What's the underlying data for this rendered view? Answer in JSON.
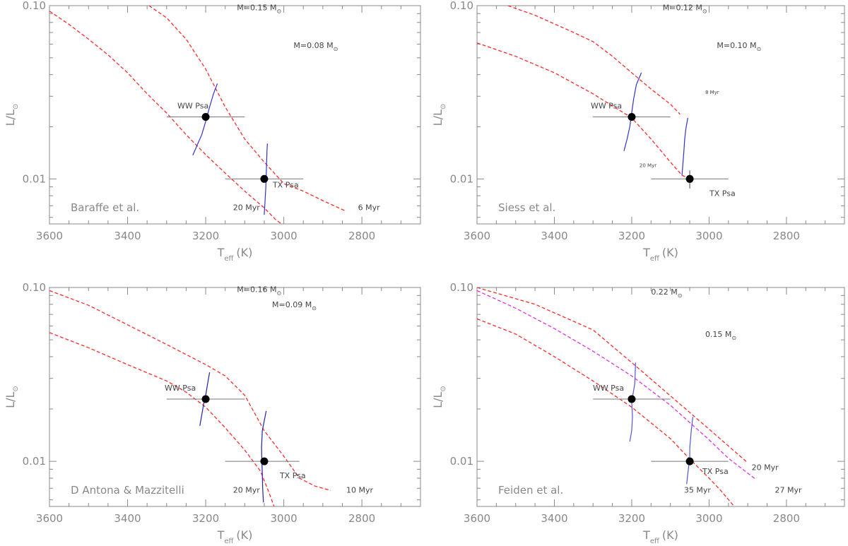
{
  "chart_data": [
    {
      "type": "line",
      "panel": "top-left",
      "model": "Baraffe et al.",
      "xlabel": "T",
      "xlabel_sub": "eff",
      "xlabel_unit": "(K)",
      "ylabel": "L/L",
      "ylabel_sym": "⊙",
      "xlim": [
        3600,
        2650
      ],
      "ylim": [
        0.0055,
        0.1
      ],
      "yscale": "log",
      "xticks": [
        3600,
        3400,
        3200,
        3000,
        2800
      ],
      "xtick_labels": [
        "3600",
        "3400",
        "3200",
        "3000",
        "2800"
      ],
      "yticks": [
        0.01,
        0.1
      ],
      "ytick_labels": [
        "0.01",
        "0.10"
      ],
      "isochrones": [
        {
          "label": "6 Myr",
          "color": "#ff2a2a",
          "dash": true,
          "points": [
            [
              3345,
              0.1
            ],
            [
              3300,
              0.085
            ],
            [
              3250,
              0.064
            ],
            [
              3200,
              0.043
            ],
            [
              3150,
              0.026
            ],
            [
              3100,
              0.017
            ],
            [
              3050,
              0.0125
            ],
            [
              3000,
              0.0094
            ],
            [
              2950,
              0.0085
            ],
            [
              2900,
              0.0075
            ],
            [
              2840,
              0.0065
            ]
          ]
        },
        {
          "label": "20 Myr",
          "color": "#ff2a2a",
          "dash": true,
          "points": [
            [
              3600,
              0.093
            ],
            [
              3550,
              0.078
            ],
            [
              3500,
              0.064
            ],
            [
              3450,
              0.052
            ],
            [
              3400,
              0.041
            ],
            [
              3350,
              0.031
            ],
            [
              3300,
              0.024
            ],
            [
              3250,
              0.018
            ],
            [
              3200,
              0.0138
            ],
            [
              3150,
              0.0108
            ],
            [
              3100,
              0.0085
            ],
            [
              3050,
              0.0068
            ],
            [
              3020,
              0.0058
            ],
            [
              2990,
              0.0052
            ]
          ]
        }
      ],
      "mass_tracks": [
        {
          "color": "#3333cc",
          "points": [
            [
              3233,
              0.0137
            ],
            [
              3220,
              0.016
            ],
            [
              3210,
              0.018
            ],
            [
              3200,
              0.0215
            ],
            [
              3190,
              0.026
            ],
            [
              3180,
              0.031
            ],
            [
              3170,
              0.0355
            ]
          ]
        },
        {
          "color": "#3333cc",
          "points": [
            [
              3050,
              0.0062
            ],
            [
              3048,
              0.0075
            ],
            [
              3046,
              0.009
            ],
            [
              3045,
              0.0105
            ],
            [
              3044,
              0.0125
            ],
            [
              3043,
              0.0145
            ],
            [
              3042,
              0.016
            ]
          ]
        }
      ],
      "stars": [
        {
          "name": "WW Psa",
          "teff": 3200,
          "L": 0.0228,
          "xerr": [
            3300,
            3100
          ],
          "yerr": null,
          "label_dx": -40,
          "label_dy": -12
        },
        {
          "name": "TX Psa",
          "teff": 3050,
          "L": 0.01,
          "xerr": [
            3150,
            2950
          ],
          "yerr": null,
          "label_dx": 12,
          "label_dy": 12
        }
      ],
      "annotations": [
        {
          "text": "M=0.15 M",
          "sym": "⊙",
          "teff": 3120,
          "L": 0.094,
          "class": "ann"
        },
        {
          "text": "M=0.08 M",
          "sym": "⊙",
          "teff": 2975,
          "L": 0.057,
          "class": "ann"
        },
        {
          "text": "20 Myr",
          "teff": 3130,
          "L": 0.0066,
          "class": "ann"
        },
        {
          "text": "6 Myr",
          "teff": 2810,
          "L": 0.0066,
          "class": "ann"
        }
      ]
    },
    {
      "type": "line",
      "panel": "top-right",
      "model": "Siess et al.",
      "xlabel": "T",
      "xlabel_sub": "eff",
      "xlabel_unit": "(K)",
      "ylabel": "L/L",
      "ylabel_sym": "⊙",
      "xlim": [
        3600,
        2650
      ],
      "ylim": [
        0.0055,
        0.1
      ],
      "yscale": "log",
      "xticks": [
        3600,
        3400,
        3200,
        3000,
        2800
      ],
      "xtick_labels": [
        "3600",
        "3400",
        "3200",
        "3000",
        "2800"
      ],
      "yticks": [
        0.01,
        0.1
      ],
      "ytick_labels": [
        "0.01",
        "0.10"
      ],
      "isochrones": [
        {
          "label": "8 Myr",
          "color": "#ff2a2a",
          "dash": true,
          "points": [
            [
              3520,
              0.1
            ],
            [
              3450,
              0.088
            ],
            [
              3350,
              0.07
            ],
            [
              3300,
              0.062
            ],
            [
              3250,
              0.051
            ],
            [
              3200,
              0.041
            ],
            [
              3150,
              0.033
            ],
            [
              3100,
              0.027
            ],
            [
              3075,
              0.0236
            ]
          ]
        },
        {
          "label": "20 Myr",
          "color": "#ff2a2a",
          "dash": true,
          "points": [
            [
              3600,
              0.061
            ],
            [
              3500,
              0.051
            ],
            [
              3400,
              0.041
            ],
            [
              3300,
              0.031
            ],
            [
              3200,
              0.0225
            ],
            [
              3150,
              0.017
            ],
            [
              3100,
              0.0125
            ],
            [
              3070,
              0.0105
            ],
            [
              3055,
              0.0101
            ]
          ]
        }
      ],
      "mass_tracks": [
        {
          "color": "#3333cc",
          "points": [
            [
              3220,
              0.0145
            ],
            [
              3212,
              0.017
            ],
            [
              3205,
              0.02
            ],
            [
              3200,
              0.024
            ],
            [
              3195,
              0.029
            ],
            [
              3188,
              0.035
            ],
            [
              3175,
              0.041
            ]
          ]
        },
        {
          "color": "#3333cc",
          "points": [
            [
              3070,
              0.0105
            ],
            [
              3068,
              0.012
            ],
            [
              3065,
              0.0145
            ],
            [
              3063,
              0.017
            ],
            [
              3060,
              0.0195
            ],
            [
              3055,
              0.0225
            ]
          ]
        }
      ],
      "stars": [
        {
          "name": "WW Psa",
          "teff": 3200,
          "L": 0.0228,
          "xerr": [
            3300,
            3100
          ],
          "yerr": null,
          "label_dx": -58,
          "label_dy": -12
        },
        {
          "name": "TX Psa",
          "teff": 3050,
          "L": 0.01,
          "xerr": [
            3150,
            2950
          ],
          "yerr": [
            0.0088,
            0.0112
          ],
          "label_dx": 28,
          "label_dy": 24
        }
      ],
      "annotations": [
        {
          "text": "M=0.12 M",
          "sym": "⊙",
          "teff": 3120,
          "L": 0.094,
          "class": "ann"
        },
        {
          "text": "M=0.10 M",
          "sym": "⊙",
          "teff": 2980,
          "L": 0.057,
          "class": "ann"
        },
        {
          "text": "8 Myr",
          "teff": 3010,
          "L": 0.031,
          "class": "ann-small"
        },
        {
          "text": "20 Myr",
          "teff": 3180,
          "L": 0.0117,
          "class": "ann-small"
        }
      ]
    },
    {
      "type": "line",
      "panel": "bottom-left",
      "model": "D Antona & Mazzitelli",
      "xlabel": "T",
      "xlabel_sub": "eff",
      "xlabel_unit": "(K)",
      "ylabel": "L/L",
      "ylabel_sym": "⊙",
      "xlim": [
        3600,
        2650
      ],
      "ylim": [
        0.0055,
        0.1
      ],
      "yscale": "log",
      "xticks": [
        3600,
        3400,
        3200,
        3000,
        2800
      ],
      "xtick_labels": [
        "3600",
        "3400",
        "3200",
        "3000",
        "2800"
      ],
      "yticks": [
        0.01,
        0.1
      ],
      "ytick_labels": [
        "0.01",
        "0.10"
      ],
      "isochrones": [
        {
          "label": "10 Myr",
          "color": "#ff2a2a",
          "dash": true,
          "points": [
            [
              3600,
              0.096
            ],
            [
              3500,
              0.079
            ],
            [
              3400,
              0.061
            ],
            [
              3300,
              0.047
            ],
            [
              3200,
              0.036
            ],
            [
              3150,
              0.031
            ],
            [
              3100,
              0.024
            ],
            [
              3050,
              0.015
            ],
            [
              3000,
              0.0107
            ],
            [
              2960,
              0.008
            ],
            [
              2920,
              0.0072
            ],
            [
              2880,
              0.0068
            ]
          ]
        },
        {
          "label": "20 Myr",
          "color": "#ff2a2a",
          "dash": true,
          "points": [
            [
              3600,
              0.055
            ],
            [
              3500,
              0.045
            ],
            [
              3400,
              0.036
            ],
            [
              3300,
              0.029
            ],
            [
              3250,
              0.025
            ],
            [
              3200,
              0.0205
            ],
            [
              3150,
              0.0156
            ],
            [
              3100,
              0.0116
            ],
            [
              3060,
              0.0088
            ],
            [
              3040,
              0.0068
            ],
            [
              3025,
              0.0055
            ]
          ]
        }
      ],
      "mass_tracks": [
        {
          "color": "#2222aa",
          "points": [
            [
              3215,
              0.016
            ],
            [
              3210,
              0.0185
            ],
            [
              3205,
              0.0215
            ],
            [
              3200,
              0.024
            ],
            [
              3195,
              0.028
            ],
            [
              3190,
              0.0325
            ]
          ]
        },
        {
          "color": "#2222aa",
          "points": [
            [
              3052,
              0.0058
            ],
            [
              3054,
              0.007
            ],
            [
              3055,
              0.0085
            ],
            [
              3056,
              0.01
            ],
            [
              3057,
              0.012
            ],
            [
              3055,
              0.015
            ],
            [
              3045,
              0.0195
            ]
          ]
        }
      ],
      "stars": [
        {
          "name": "WW Psa",
          "teff": 3200,
          "L": 0.0228,
          "xerr": [
            3300,
            3100
          ],
          "yerr": null,
          "label_dx": -58,
          "label_dy": -12
        },
        {
          "name": "TX Psa",
          "teff": 3050,
          "L": 0.01,
          "xerr": [
            3150,
            2960
          ],
          "yerr": null,
          "label_dx": 22,
          "label_dy": 24
        }
      ],
      "annotations": [
        {
          "text": "M=0.16 M",
          "sym": "⊙",
          "teff": 3120,
          "L": 0.094,
          "class": "ann"
        },
        {
          "text": "M=0.09 M",
          "sym": "⊙",
          "teff": 3030,
          "L": 0.077,
          "class": "ann"
        },
        {
          "text": "20 Myr",
          "teff": 3130,
          "L": 0.0066,
          "class": "ann"
        },
        {
          "text": "10 Myr",
          "teff": 2840,
          "L": 0.0066,
          "class": "ann"
        }
      ]
    },
    {
      "type": "line",
      "panel": "bottom-right",
      "model": "Feiden et al.",
      "xlabel": "T",
      "xlabel_sub": "eff",
      "xlabel_unit": "(K)",
      "ylabel": "L/L",
      "ylabel_sym": "⊙",
      "xlim": [
        3600,
        2650
      ],
      "ylim": [
        0.0055,
        0.1
      ],
      "yscale": "log",
      "xticks": [
        3600,
        3400,
        3200,
        3000,
        2800
      ],
      "xtick_labels": [
        "3600",
        "3400",
        "3200",
        "3000",
        "2800"
      ],
      "yticks": [
        0.01,
        0.1
      ],
      "ytick_labels": [
        "0.01",
        "0.10"
      ],
      "isochrones": [
        {
          "label": "20 Myr",
          "color": "#ff2a2a",
          "dash": true,
          "points": [
            [
              3600,
              0.1
            ],
            [
              3450,
              0.08
            ],
            [
              3300,
              0.057
            ],
            [
              3200,
              0.037
            ],
            [
              3100,
              0.0238
            ],
            [
              3000,
              0.0153
            ],
            [
              2900,
              0.0098
            ]
          ]
        },
        {
          "label": "27 Myr",
          "color": "#dd33dd",
          "dash": true,
          "points": [
            [
              3600,
              0.096
            ],
            [
              3500,
              0.076
            ],
            [
              3400,
              0.058
            ],
            [
              3300,
              0.043
            ],
            [
              3200,
              0.031
            ],
            [
              3100,
              0.021
            ],
            [
              3000,
              0.0133
            ],
            [
              2950,
              0.0104
            ],
            [
              2880,
              0.0079
            ]
          ]
        },
        {
          "label": "35 Myr",
          "color": "#ff2a2a",
          "dash": true,
          "points": [
            [
              3600,
              0.066
            ],
            [
              3500,
              0.054
            ],
            [
              3400,
              0.04
            ],
            [
              3300,
              0.029
            ],
            [
              3200,
              0.0205
            ],
            [
              3100,
              0.0135
            ],
            [
              3050,
              0.0103
            ],
            [
              3000,
              0.008
            ],
            [
              2970,
              0.0068
            ],
            [
              2935,
              0.0055
            ]
          ]
        }
      ],
      "mass_tracks": [
        {
          "color": "#5555dd",
          "points": [
            [
              3205,
              0.013
            ],
            [
              3200,
              0.015
            ],
            [
              3198,
              0.018
            ],
            [
              3200,
              0.022
            ],
            [
              3192,
              0.028
            ],
            [
              3190,
              0.037
            ]
          ]
        },
        {
          "color": "#5555dd",
          "points": [
            [
              3058,
              0.0074
            ],
            [
              3055,
              0.0085
            ],
            [
              3050,
              0.0105
            ],
            [
              3050,
              0.012
            ],
            [
              3046,
              0.015
            ],
            [
              3042,
              0.018
            ]
          ]
        }
      ],
      "stars": [
        {
          "name": "WW Psa",
          "teff": 3200,
          "L": 0.0228,
          "xerr": [
            3300,
            3100
          ],
          "yerr": null,
          "label_dx": -55,
          "label_dy": -12
        },
        {
          "name": "TX Psa",
          "teff": 3050,
          "L": 0.01,
          "xerr": [
            3150,
            2950
          ],
          "yerr": null,
          "label_dx": 18,
          "label_dy": 18
        }
      ],
      "annotations": [
        {
          "text": "0.22 M",
          "sym": "⊙",
          "teff": 3150,
          "L": 0.091,
          "class": "ann"
        },
        {
          "text": "0.15 M",
          "sym": "⊙",
          "teff": 3010,
          "L": 0.052,
          "class": "ann"
        },
        {
          "text": "20 Myr",
          "teff": 2890,
          "L": 0.0089,
          "class": "ann"
        },
        {
          "text": "35 Myr",
          "teff": 3065,
          "L": 0.0066,
          "class": "ann"
        },
        {
          "text": "27 Myr",
          "teff": 2830,
          "L": 0.0066,
          "class": "ann",
          "color": "#dd33dd"
        }
      ]
    }
  ]
}
